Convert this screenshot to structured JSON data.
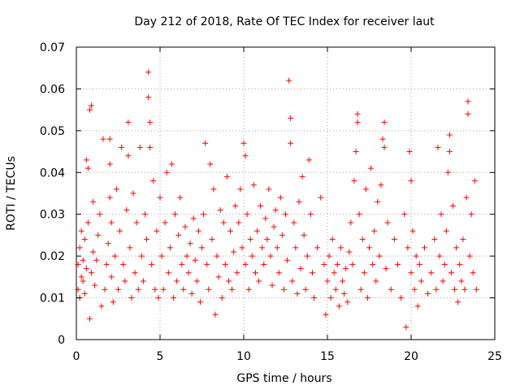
{
  "chart_data": {
    "type": "scatter",
    "title": "Day 212 of 2018, Rate Of TEC Index for receiver laut",
    "xlabel": "GPS time / hours",
    "ylabel": "ROTI / TECUs",
    "xlim": [
      0,
      25
    ],
    "ylim": [
      0,
      0.07
    ],
    "xticks": [
      0,
      5,
      10,
      15,
      20,
      25
    ],
    "yticks": [
      0,
      0.01,
      0.02,
      0.03,
      0.04,
      0.05,
      0.06,
      0.07
    ],
    "xtick_labels": [
      "0",
      "5",
      "10",
      "15",
      "20",
      "25"
    ],
    "ytick_labels": [
      "0",
      "0.01",
      "0.02",
      "0.03",
      "0.04",
      "0.05",
      "0.06",
      "0.07"
    ],
    "grid": true,
    "marker": "plus",
    "color": "#ff0000",
    "points": [
      [
        0.1,
        0.012
      ],
      [
        0.1,
        0.018
      ],
      [
        0.2,
        0.01
      ],
      [
        0.2,
        0.022
      ],
      [
        0.3,
        0.015
      ],
      [
        0.3,
        0.026
      ],
      [
        0.4,
        0.014
      ],
      [
        0.4,
        0.019
      ],
      [
        0.5,
        0.011
      ],
      [
        0.5,
        0.024
      ],
      [
        0.6,
        0.043
      ],
      [
        0.6,
        0.017
      ],
      [
        0.7,
        0.041
      ],
      [
        0.7,
        0.028
      ],
      [
        0.8,
        0.055
      ],
      [
        0.8,
        0.005
      ],
      [
        0.9,
        0.056
      ],
      [
        0.9,
        0.016
      ],
      [
        1.0,
        0.021
      ],
      [
        1.0,
        0.033
      ],
      [
        1.1,
        0.013
      ],
      [
        1.2,
        0.019
      ],
      [
        1.3,
        0.025
      ],
      [
        1.4,
        0.03
      ],
      [
        1.5,
        0.008
      ],
      [
        1.6,
        0.048
      ],
      [
        1.7,
        0.012
      ],
      [
        1.8,
        0.018
      ],
      [
        1.9,
        0.023
      ],
      [
        2.0,
        0.034
      ],
      [
        2.0,
        0.048
      ],
      [
        2.0,
        0.042
      ],
      [
        2.1,
        0.028
      ],
      [
        2.1,
        0.015
      ],
      [
        2.2,
        0.009
      ],
      [
        2.3,
        0.02
      ],
      [
        2.4,
        0.036
      ],
      [
        2.5,
        0.012
      ],
      [
        2.6,
        0.026
      ],
      [
        2.7,
        0.046
      ],
      [
        2.8,
        0.018
      ],
      [
        2.9,
        0.014
      ],
      [
        3.0,
        0.031
      ],
      [
        3.1,
        0.052
      ],
      [
        3.1,
        0.044
      ],
      [
        3.2,
        0.022
      ],
      [
        3.3,
        0.01
      ],
      [
        3.4,
        0.035
      ],
      [
        3.5,
        0.016
      ],
      [
        3.6,
        0.028
      ],
      [
        3.7,
        0.012
      ],
      [
        3.8,
        0.046
      ],
      [
        3.9,
        0.02
      ],
      [
        4.0,
        0.014
      ],
      [
        4.1,
        0.03
      ],
      [
        4.2,
        0.024
      ],
      [
        4.3,
        0.064
      ],
      [
        4.3,
        0.058
      ],
      [
        4.4,
        0.052
      ],
      [
        4.4,
        0.046
      ],
      [
        4.5,
        0.018
      ],
      [
        4.6,
        0.038
      ],
      [
        4.7,
        0.012
      ],
      [
        4.8,
        0.026
      ],
      [
        4.9,
        0.01
      ],
      [
        5.0,
        0.034
      ],
      [
        5.1,
        0.02
      ],
      [
        5.2,
        0.012
      ],
      [
        5.3,
        0.028
      ],
      [
        5.4,
        0.04
      ],
      [
        5.5,
        0.016
      ],
      [
        5.6,
        0.022
      ],
      [
        5.7,
        0.042
      ],
      [
        5.8,
        0.01
      ],
      [
        5.9,
        0.03
      ],
      [
        6.0,
        0.014
      ],
      [
        6.1,
        0.025
      ],
      [
        6.2,
        0.034
      ],
      [
        6.3,
        0.018
      ],
      [
        6.4,
        0.012
      ],
      [
        6.5,
        0.027
      ],
      [
        6.6,
        0.02
      ],
      [
        6.7,
        0.016
      ],
      [
        6.8,
        0.023
      ],
      [
        6.9,
        0.011
      ],
      [
        7.0,
        0.029
      ],
      [
        7.1,
        0.019
      ],
      [
        7.2,
        0.014
      ],
      [
        7.3,
        0.026
      ],
      [
        7.4,
        0.009
      ],
      [
        7.5,
        0.022
      ],
      [
        7.6,
        0.03
      ],
      [
        7.7,
        0.047
      ],
      [
        7.8,
        0.018
      ],
      [
        7.9,
        0.012
      ],
      [
        8.0,
        0.042
      ],
      [
        8.1,
        0.024
      ],
      [
        8.2,
        0.036
      ],
      [
        8.3,
        0.006
      ],
      [
        8.4,
        0.02
      ],
      [
        8.5,
        0.015
      ],
      [
        8.6,
        0.031
      ],
      [
        8.7,
        0.01
      ],
      [
        8.8,
        0.028
      ],
      [
        8.9,
        0.018
      ],
      [
        9.0,
        0.039
      ],
      [
        9.1,
        0.014
      ],
      [
        9.2,
        0.026
      ],
      [
        9.3,
        0.012
      ],
      [
        9.4,
        0.021
      ],
      [
        9.5,
        0.032
      ],
      [
        9.6,
        0.016
      ],
      [
        9.7,
        0.028
      ],
      [
        9.8,
        0.036
      ],
      [
        9.9,
        0.022
      ],
      [
        10.0,
        0.047
      ],
      [
        10.1,
        0.044
      ],
      [
        10.1,
        0.018
      ],
      [
        10.2,
        0.03
      ],
      [
        10.3,
        0.012
      ],
      [
        10.4,
        0.024
      ],
      [
        10.5,
        0.02
      ],
      [
        10.6,
        0.037
      ],
      [
        10.7,
        0.016
      ],
      [
        10.8,
        0.026
      ],
      [
        10.9,
        0.014
      ],
      [
        11.0,
        0.032
      ],
      [
        11.1,
        0.022
      ],
      [
        11.2,
        0.018
      ],
      [
        11.3,
        0.029
      ],
      [
        11.4,
        0.024
      ],
      [
        11.5,
        0.036
      ],
      [
        11.6,
        0.02
      ],
      [
        11.7,
        0.013
      ],
      [
        11.8,
        0.027
      ],
      [
        11.9,
        0.031
      ],
      [
        12.0,
        0.022
      ],
      [
        12.1,
        0.016
      ],
      [
        12.2,
        0.034
      ],
      [
        12.3,
        0.025
      ],
      [
        12.4,
        0.012
      ],
      [
        12.5,
        0.03
      ],
      [
        12.6,
        0.019
      ],
      [
        12.7,
        0.062
      ],
      [
        12.8,
        0.053
      ],
      [
        12.8,
        0.047
      ],
      [
        12.9,
        0.014
      ],
      [
        13.0,
        0.028
      ],
      [
        13.1,
        0.022
      ],
      [
        13.2,
        0.011
      ],
      [
        13.3,
        0.033
      ],
      [
        13.4,
        0.017
      ],
      [
        13.5,
        0.039
      ],
      [
        13.6,
        0.025
      ],
      [
        13.7,
        0.012
      ],
      [
        13.8,
        0.02
      ],
      [
        13.9,
        0.043
      ],
      [
        14.0,
        0.03
      ],
      [
        14.1,
        0.016
      ],
      [
        14.2,
        0.01
      ],
      [
        14.4,
        0.022
      ],
      [
        14.6,
        0.034
      ],
      [
        14.8,
        0.018
      ],
      [
        14.9,
        0.006
      ],
      [
        15.0,
        0.014
      ],
      [
        15.1,
        0.02
      ],
      [
        15.2,
        0.01
      ],
      [
        15.3,
        0.024
      ],
      [
        15.4,
        0.016
      ],
      [
        15.5,
        0.012
      ],
      [
        15.6,
        0.018
      ],
      [
        15.7,
        0.008
      ],
      [
        15.8,
        0.022
      ],
      [
        15.9,
        0.014
      ],
      [
        16.0,
        0.011
      ],
      [
        16.1,
        0.017
      ],
      [
        16.2,
        0.009
      ],
      [
        16.3,
        0.021
      ],
      [
        16.4,
        0.028
      ],
      [
        16.5,
        0.018
      ],
      [
        16.6,
        0.038
      ],
      [
        16.7,
        0.045
      ],
      [
        16.8,
        0.054
      ],
      [
        16.8,
        0.052
      ],
      [
        16.9,
        0.03
      ],
      [
        17.0,
        0.012
      ],
      [
        17.1,
        0.024
      ],
      [
        17.2,
        0.016
      ],
      [
        17.3,
        0.036
      ],
      [
        17.4,
        0.01
      ],
      [
        17.5,
        0.022
      ],
      [
        17.6,
        0.041
      ],
      [
        17.7,
        0.018
      ],
      [
        17.8,
        0.026
      ],
      [
        17.9,
        0.014
      ],
      [
        18.0,
        0.033
      ],
      [
        18.1,
        0.02
      ],
      [
        18.2,
        0.037
      ],
      [
        18.3,
        0.048
      ],
      [
        18.4,
        0.052
      ],
      [
        18.4,
        0.046
      ],
      [
        18.5,
        0.017
      ],
      [
        18.6,
        0.028
      ],
      [
        18.8,
        0.012
      ],
      [
        19.0,
        0.024
      ],
      [
        19.2,
        0.018
      ],
      [
        19.4,
        0.01
      ],
      [
        19.6,
        0.03
      ],
      [
        19.7,
        0.003
      ],
      [
        19.8,
        0.022
      ],
      [
        19.9,
        0.045
      ],
      [
        20.0,
        0.038
      ],
      [
        20.0,
        0.016
      ],
      [
        20.1,
        0.026
      ],
      [
        20.2,
        0.012
      ],
      [
        20.3,
        0.02
      ],
      [
        20.4,
        0.008
      ],
      [
        20.5,
        0.018
      ],
      [
        20.6,
        0.014
      ],
      [
        20.8,
        0.022
      ],
      [
        21.0,
        0.011
      ],
      [
        21.2,
        0.016
      ],
      [
        21.4,
        0.024
      ],
      [
        21.5,
        0.012
      ],
      [
        21.6,
        0.046
      ],
      [
        21.7,
        0.02
      ],
      [
        21.8,
        0.03
      ],
      [
        21.9,
        0.014
      ],
      [
        22.0,
        0.018
      ],
      [
        22.1,
        0.026
      ],
      [
        22.2,
        0.04
      ],
      [
        22.3,
        0.049
      ],
      [
        22.3,
        0.045
      ],
      [
        22.4,
        0.016
      ],
      [
        22.5,
        0.032
      ],
      [
        22.6,
        0.012
      ],
      [
        22.7,
        0.022
      ],
      [
        22.8,
        0.009
      ],
      [
        22.9,
        0.018
      ],
      [
        23.0,
        0.014
      ],
      [
        23.1,
        0.024
      ],
      [
        23.2,
        0.012
      ],
      [
        23.3,
        0.034
      ],
      [
        23.4,
        0.057
      ],
      [
        23.4,
        0.054
      ],
      [
        23.5,
        0.02
      ],
      [
        23.6,
        0.03
      ],
      [
        23.7,
        0.016
      ],
      [
        23.8,
        0.038
      ],
      [
        23.9,
        0.012
      ]
    ]
  }
}
